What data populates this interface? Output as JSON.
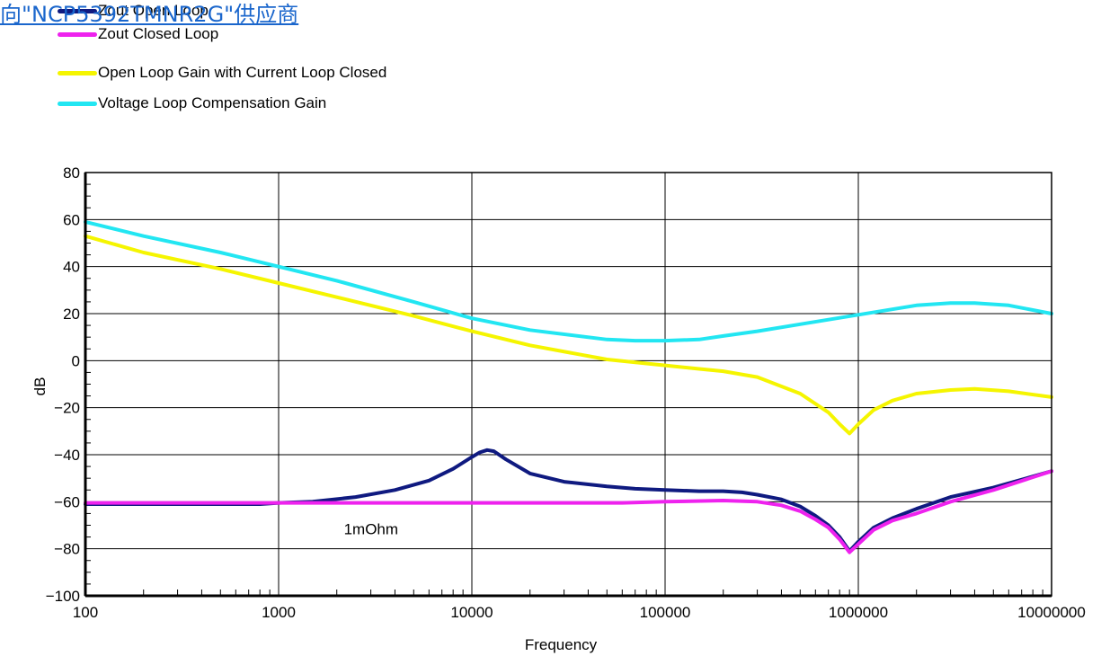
{
  "overlay_link": "向\"NCP5392TMNR2G\"供应商",
  "chart_data": {
    "type": "line",
    "xlabel": "Frequency",
    "ylabel": "dB",
    "xscale": "log",
    "xlim": [
      100,
      10000000
    ],
    "ylim": [
      -100,
      80
    ],
    "x_ticks": [
      "100",
      "1000",
      "10000",
      "100000",
      "1000000",
      "10000000"
    ],
    "y_ticks": [
      "80",
      "60",
      "40",
      "20",
      "0",
      "−20",
      "−40",
      "−60",
      "−80",
      "−100"
    ],
    "grid": true,
    "legend_position": "top-left",
    "annotations": [
      {
        "text": "1mOhm",
        "x": 3000,
        "y": -67
      }
    ],
    "series": [
      {
        "name": "Zout Open Loop",
        "color": "#0f1a80",
        "x": [
          100,
          800,
          1000,
          1500,
          2500,
          4000,
          6000,
          8000,
          10000,
          11000,
          12000,
          13000,
          15000,
          20000,
          30000,
          50000,
          70000,
          100000,
          150000,
          200000,
          250000,
          300000,
          400000,
          500000,
          600000,
          700000,
          800000,
          900000,
          1000000,
          1200000,
          1500000,
          2000000,
          3000000,
          5000000,
          10000000
        ],
        "values": [
          -61,
          -61,
          -60.5,
          -60,
          -58,
          -55,
          -51,
          -46,
          -41,
          -39,
          -38,
          -38.5,
          -42,
          -48,
          -51.5,
          -53.5,
          -54.5,
          -55,
          -55.5,
          -55.5,
          -56,
          -57,
          -59,
          -62,
          -66,
          -70,
          -75,
          -81,
          -77,
          -71,
          -67,
          -63,
          -58,
          -54,
          -47
        ]
      },
      {
        "name": "Zout Closed Loop",
        "color": "#ee22ee",
        "x": [
          100,
          1000,
          10000,
          60000,
          100000,
          200000,
          300000,
          400000,
          500000,
          600000,
          700000,
          800000,
          900000,
          1000000,
          1200000,
          1500000,
          2000000,
          3000000,
          5000000,
          10000000
        ],
        "values": [
          -60.5,
          -60.5,
          -60.5,
          -60.5,
          -60,
          -59.5,
          -60,
          -61.5,
          -64,
          -67.5,
          -71,
          -76,
          -81.5,
          -78,
          -72,
          -68,
          -65,
          -60,
          -55,
          -47
        ]
      },
      {
        "name": "Open Loop Gain with Current Loop Closed",
        "color": "#f5f500",
        "x": [
          100,
          200,
          500,
          1000,
          2000,
          5000,
          10000,
          20000,
          50000,
          100000,
          150000,
          200000,
          300000,
          500000,
          700000,
          800000,
          900000,
          1000000,
          1200000,
          1500000,
          2000000,
          3000000,
          4000000,
          6000000,
          10000000
        ],
        "values": [
          53,
          46,
          39,
          33,
          27,
          19,
          12.5,
          6.5,
          0.5,
          -2,
          -3.5,
          -4.5,
          -7,
          -14,
          -22,
          -27,
          -31,
          -27,
          -21,
          -17,
          -14,
          -12.5,
          -12,
          -13,
          -15.5
        ]
      },
      {
        "name": "Voltage Loop Compensation Gain",
        "color": "#22e6f2",
        "x": [
          100,
          200,
          500,
          1000,
          2000,
          5000,
          10000,
          20000,
          50000,
          70000,
          100000,
          150000,
          200000,
          300000,
          500000,
          1000000,
          2000000,
          3000000,
          4000000,
          6000000,
          10000000
        ],
        "values": [
          59,
          53,
          46,
          40,
          34,
          25,
          18,
          13,
          9,
          8.5,
          8.5,
          9,
          10.5,
          12.5,
          15.5,
          19.5,
          23.5,
          24.5,
          24.5,
          23.5,
          20
        ]
      }
    ]
  }
}
